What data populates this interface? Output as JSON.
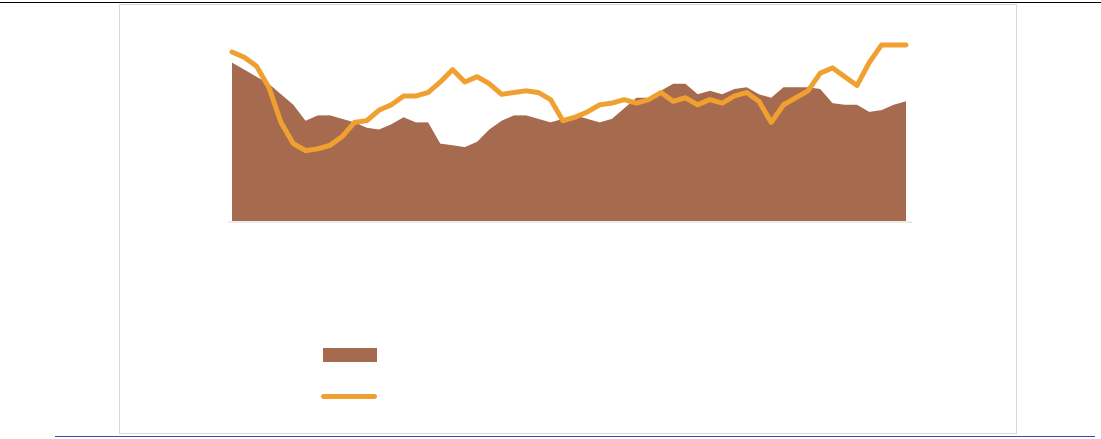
{
  "colors": {
    "area": "#a66a4f",
    "line": "#f0a030",
    "axis": "#d9d9d9"
  },
  "chart_data": {
    "type": "area",
    "title": "",
    "xlabel": "",
    "ylabel": "",
    "grid": false,
    "legend_position": "bottom-left",
    "ylim": [
      0,
      100
    ],
    "x_count": 56,
    "series": [
      {
        "kind": "area",
        "name": "",
        "values": [
          90,
          86,
          82,
          78,
          72,
          66,
          57,
          60,
          60,
          58,
          56,
          53,
          52,
          55,
          59,
          56,
          56,
          44,
          43,
          42,
          45,
          52,
          57,
          60,
          60,
          58,
          56,
          58,
          60,
          58,
          56,
          58,
          64,
          70,
          70,
          74,
          78,
          78,
          72,
          74,
          72,
          75,
          76,
          72,
          70,
          76,
          76,
          76,
          75,
          67,
          66,
          66,
          62,
          63,
          66,
          68
        ]
      },
      {
        "kind": "line",
        "name": "",
        "values": [
          96,
          93,
          88,
          76,
          56,
          44,
          40,
          41,
          43,
          48,
          56,
          57,
          63,
          66,
          71,
          71,
          73,
          79,
          86,
          79,
          82,
          78,
          72,
          73,
          74,
          73,
          69,
          57,
          59,
          62,
          66,
          67,
          69,
          67,
          69,
          73,
          68,
          70,
          66,
          69,
          67,
          71,
          73,
          68,
          56,
          66,
          70,
          74,
          84,
          87,
          82,
          77,
          90,
          100,
          100,
          100
        ]
      }
    ]
  }
}
